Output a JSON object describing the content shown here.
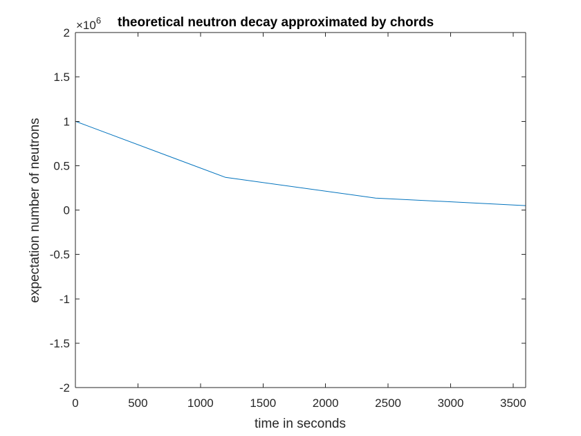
{
  "chart_data": {
    "type": "line",
    "title": "theoretical neutron decay approximated by chords",
    "xlabel": "time in seconds",
    "ylabel": "expectation number of neutrons",
    "y_exponent_prefix": "×10",
    "y_exponent_power": "6",
    "xlim": [
      0,
      3600
    ],
    "ylim": [
      -2,
      2
    ],
    "y_scale": 1000000,
    "x_ticks": [
      0,
      500,
      1000,
      1500,
      2000,
      2500,
      3000,
      3500
    ],
    "x_tick_labels": [
      "0",
      "500",
      "1000",
      "1500",
      "2000",
      "2500",
      "3000",
      "3500"
    ],
    "y_ticks": [
      -2,
      -1.5,
      -1,
      -0.5,
      0,
      0.5,
      1,
      1.5,
      2
    ],
    "y_tick_labels": [
      "-2",
      "-1.5",
      "-1",
      "-0.5",
      "0",
      "0.5",
      "1",
      "1.5",
      "2"
    ],
    "grid": false,
    "series": [
      {
        "color": "#0072bd",
        "x": [
          0,
          1200,
          2400,
          3600
        ],
        "y": [
          1000000,
          368000,
          135000,
          50000
        ]
      }
    ]
  }
}
